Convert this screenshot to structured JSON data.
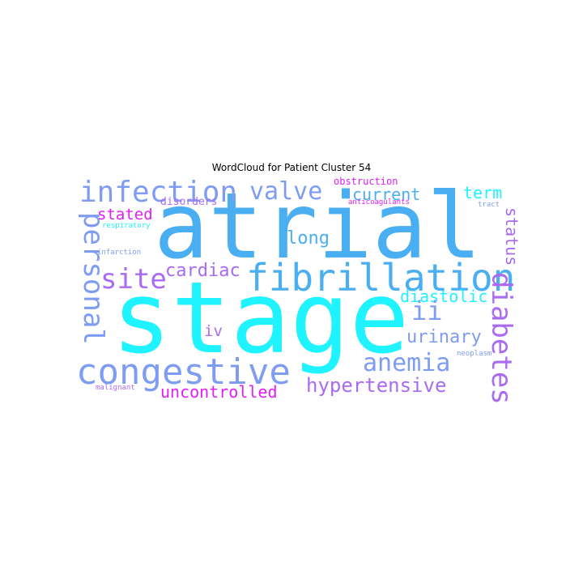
{
  "title": "WordCloud for Patient Cluster 54",
  "colors": {
    "cyan": "#1ef3ff",
    "blue": "#4aaef2",
    "periwinkle": "#7f9cf3",
    "purple": "#a96bf2",
    "magenta": "#e11ff5"
  },
  "words": {
    "atrial": "atrial",
    "stage": "stage",
    "fibrillation": "fibrillation",
    "congestive": "congestive",
    "infection": "infection",
    "valve": "valve",
    "current": "current",
    "term": "term",
    "personal": "personal",
    "stated": "stated",
    "long": "long",
    "site": "site",
    "cardiac": "cardiac",
    "diastolic": "diastolic",
    "ii": "ii",
    "diabetes": "diabetes",
    "status": "status",
    "urinary": "urinary",
    "iv": "iv",
    "anemia": "anemia",
    "hypertensive": "hypertensive",
    "uncontrolled": "uncontrolled",
    "obstruction": "obstruction",
    "disorders": "disorders",
    "anticoagulants": "anticoagulants",
    "tract": "tract",
    "respiratory": "respiratory",
    "infarction": "infarction",
    "neoplasm": "neoplasm",
    "malignant": "malignant"
  }
}
